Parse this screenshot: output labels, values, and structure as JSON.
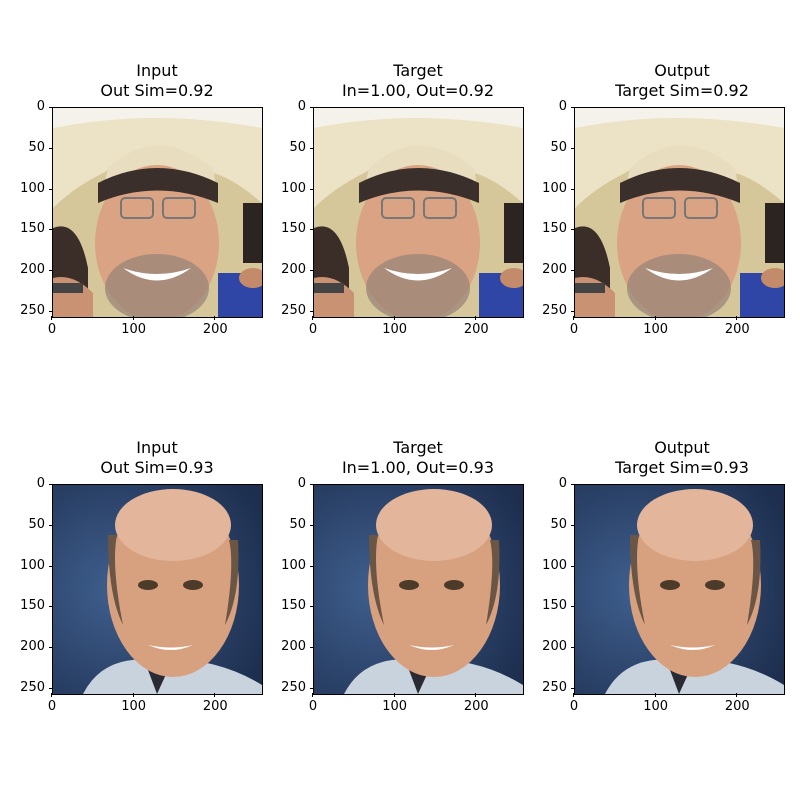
{
  "rows": [
    {
      "subject": "cowboy-hat-man",
      "panels": [
        {
          "title": "Input",
          "subtitle": "Out Sim=0.92"
        },
        {
          "title": "Target",
          "subtitle": "In=1.00, Out=0.92"
        },
        {
          "title": "Output",
          "subtitle": "Target Sim=0.92"
        }
      ]
    },
    {
      "subject": "bald-man-portrait",
      "panels": [
        {
          "title": "Input",
          "subtitle": "Out Sim=0.93"
        },
        {
          "title": "Target",
          "subtitle": "In=1.00, Out=0.93"
        },
        {
          "title": "Output",
          "subtitle": "Target Sim=0.93"
        }
      ]
    }
  ],
  "axes": {
    "y_ticks": [
      "0",
      "50",
      "100",
      "150",
      "200",
      "250"
    ],
    "x_ticks": [
      "0",
      "100",
      "200"
    ]
  },
  "colors": {
    "hat": "#ece3c6",
    "skin": "#d9a384",
    "background_blue": "#2f4c7a",
    "shirt_blue": "#2f46a6"
  }
}
